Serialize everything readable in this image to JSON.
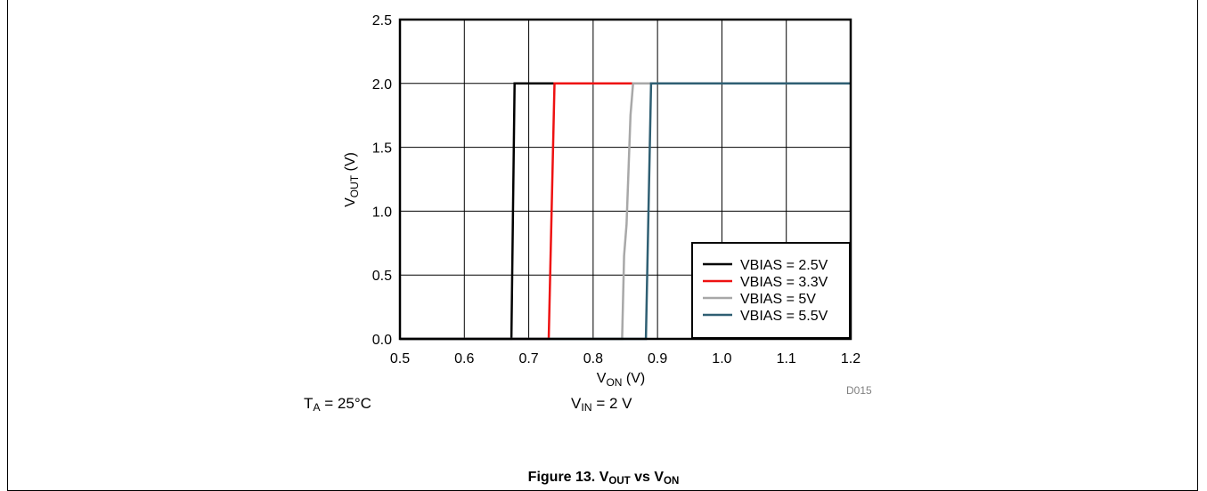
{
  "chart_data": {
    "type": "line",
    "xlabel": {
      "main": "V",
      "sub": "ON",
      "unit": " (V)"
    },
    "ylabel": {
      "main": "V",
      "sub": "OUT",
      "unit": " (V)"
    },
    "xlim": [
      0.5,
      1.2
    ],
    "ylim": [
      0,
      2.5
    ],
    "xticks": [
      "0.5",
      "0.6",
      "0.7",
      "0.8",
      "0.9",
      "1.0",
      "1.1",
      "1.2"
    ],
    "yticks": [
      "0.0",
      "0.5",
      "1.0",
      "1.5",
      "2.0",
      "2.5"
    ],
    "grid": true,
    "legend_position": "bottom-right",
    "series": [
      {
        "name": "VBIAS = 2.5V",
        "color": "#000000",
        "x": [
          0.5,
          0.673,
          0.678,
          1.2
        ],
        "y": [
          0,
          0,
          2.0,
          2.0
        ]
      },
      {
        "name": "VBIAS = 3.3V",
        "color": "#ee1111",
        "x": [
          0.5,
          0.731,
          0.74,
          1.2
        ],
        "y": [
          0,
          0,
          2.0,
          2.0
        ]
      },
      {
        "name": "VBIAS = 5V",
        "color": "#a8a8a8",
        "x": [
          0.5,
          0.845,
          0.848,
          0.852,
          0.858,
          0.862,
          1.2
        ],
        "y": [
          0,
          0,
          0.65,
          0.9,
          1.75,
          2.0,
          2.0
        ]
      },
      {
        "name": "VBIAS = 5.5V",
        "color": "#2f5f73",
        "x": [
          0.5,
          0.882,
          0.89,
          1.2
        ],
        "y": [
          0,
          0,
          2.0,
          2.0
        ]
      }
    ]
  },
  "figure_code": "D015",
  "notes": {
    "ta": {
      "main": "T",
      "sub": "A",
      "rest": " = 25°C"
    },
    "vin": {
      "main": "V",
      "sub": "IN",
      "rest": " = 2 V"
    }
  },
  "caption": {
    "prefix": "Figure 13. V",
    "sub1": "OUT",
    "middle": " vs V",
    "sub2": "ON"
  }
}
